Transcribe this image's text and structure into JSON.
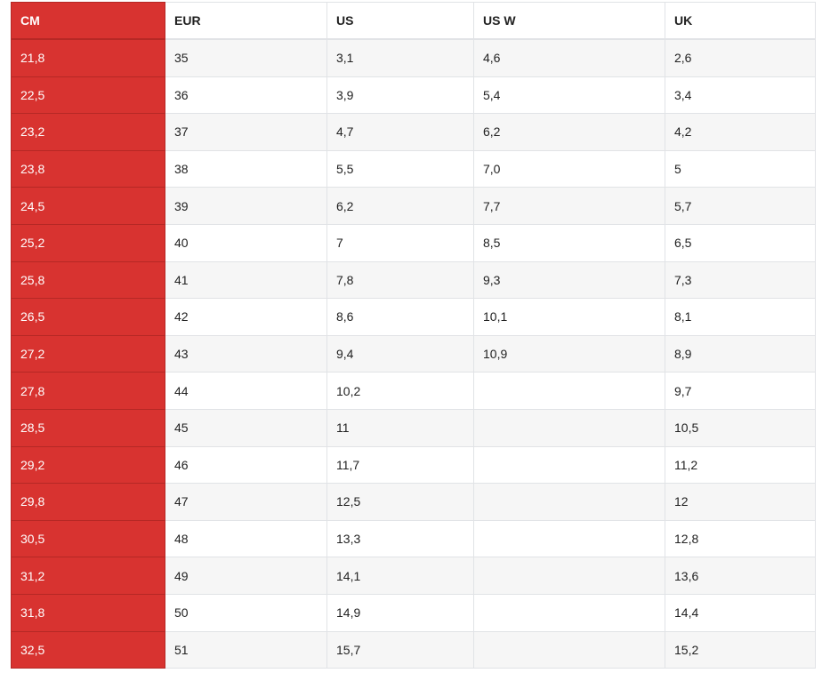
{
  "colors": {
    "accent": "#d83330",
    "stripe": "#f6f6f6",
    "border": "#e1e3e6"
  },
  "headers": [
    "CM",
    "EUR",
    "US",
    "US W",
    "UK"
  ],
  "rows": [
    [
      "21,8",
      "35",
      "3,1",
      "4,6",
      "2,6"
    ],
    [
      "22,5",
      "36",
      "3,9",
      "5,4",
      "3,4"
    ],
    [
      "23,2",
      "37",
      "4,7",
      "6,2",
      "4,2"
    ],
    [
      "23,8",
      "38",
      "5,5",
      "7,0",
      "5"
    ],
    [
      "24,5",
      "39",
      "6,2",
      "7,7",
      "5,7"
    ],
    [
      "25,2",
      "40",
      "7",
      "8,5",
      "6,5"
    ],
    [
      "25,8",
      "41",
      "7,8",
      "9,3",
      "7,3"
    ],
    [
      "26,5",
      "42",
      "8,6",
      "10,1",
      "8,1"
    ],
    [
      "27,2",
      "43",
      "9,4",
      "10,9",
      "8,9"
    ],
    [
      "27,8",
      "44",
      "10,2",
      "",
      "9,7"
    ],
    [
      "28,5",
      "45",
      "11",
      "",
      "10,5"
    ],
    [
      "29,2",
      "46",
      "11,7",
      "",
      "11,2"
    ],
    [
      "29,8",
      "47",
      "12,5",
      "",
      "12"
    ],
    [
      "30,5",
      "48",
      "13,3",
      "",
      "12,8"
    ],
    [
      "31,2",
      "49",
      "14,1",
      "",
      "13,6"
    ],
    [
      "31,8",
      "50",
      "14,9",
      "",
      "14,4"
    ],
    [
      "32,5",
      "51",
      "15,7",
      "",
      "15,2"
    ]
  ]
}
